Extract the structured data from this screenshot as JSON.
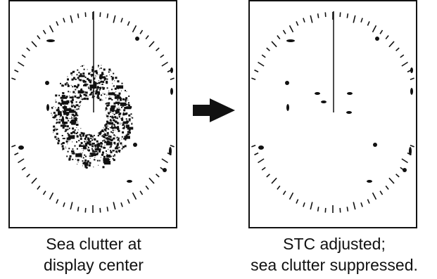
{
  "panels": [
    {
      "id": "before",
      "caption_lines": [
        "Sea clutter at",
        "display center"
      ],
      "sea_clutter": "present"
    },
    {
      "id": "after",
      "caption_lines": [
        "STC adjusted;",
        "sea clutter suppressed."
      ],
      "sea_clutter": "suppressed"
    }
  ],
  "arrow": {
    "direction": "right",
    "color": "#111111"
  }
}
